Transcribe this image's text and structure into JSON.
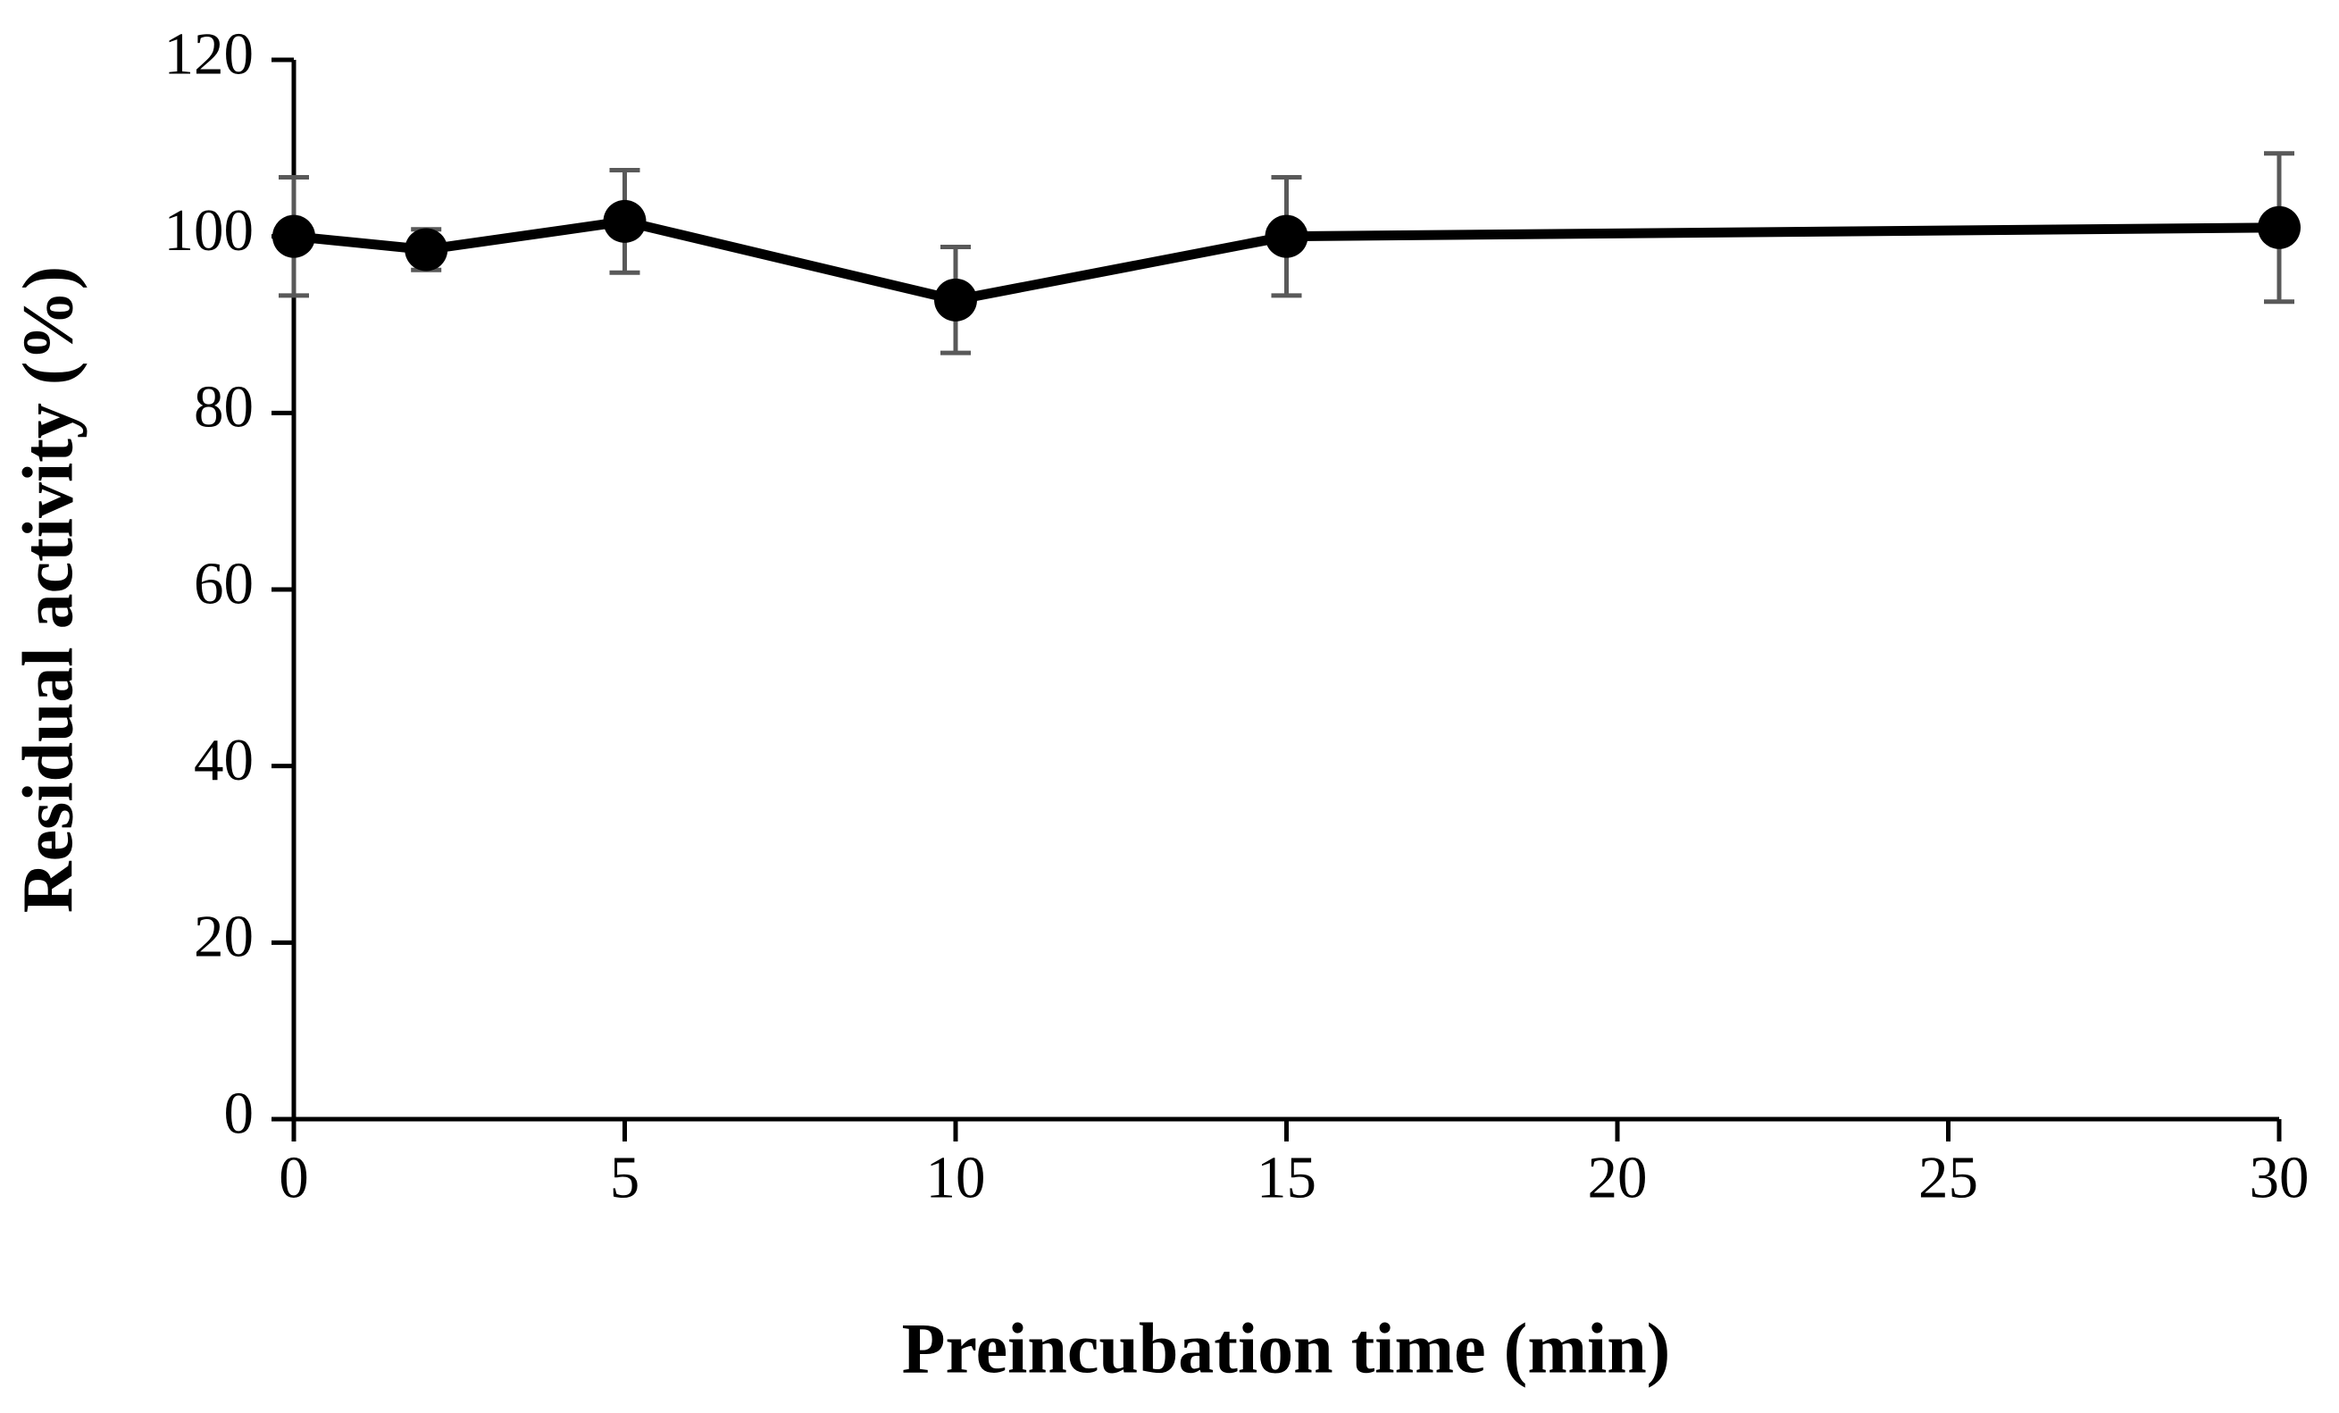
{
  "chart_data": {
    "type": "line",
    "x_label": "Preincubation time (min)",
    "y_label": "Residual activity (%)",
    "x": [
      0,
      2,
      5,
      10,
      15,
      30
    ],
    "values": [
      100,
      98.5,
      101.7,
      92.8,
      100,
      101
    ],
    "errors": [
      6.7,
      2.3,
      5.8,
      6,
      6.7,
      8.4
    ],
    "color": "#000000",
    "error_color": "#595959",
    "xlim": [
      0,
      30
    ],
    "xticks": [
      0,
      5,
      10,
      15,
      20,
      25,
      30
    ],
    "ylim": [
      0,
      120
    ],
    "yticks": [
      0,
      20,
      40,
      60,
      80,
      100,
      120
    ],
    "grid": false
  }
}
